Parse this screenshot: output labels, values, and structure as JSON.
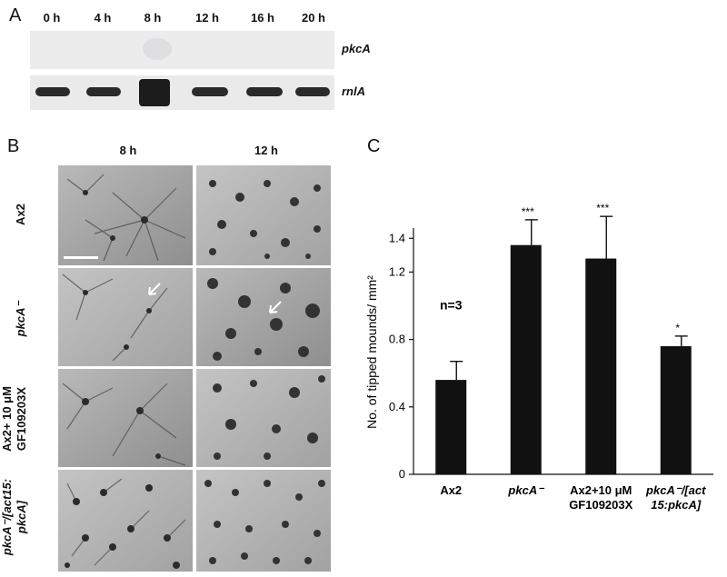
{
  "panels": {
    "a": "A",
    "b": "B",
    "c": "C"
  },
  "panel_a": {
    "timepoints": [
      "0 h",
      "4 h",
      "8 h",
      "12 h",
      "16 h",
      "20 h"
    ],
    "gene_labels": [
      "pkcA",
      "rnlA"
    ]
  },
  "panel_b": {
    "columns": [
      "8 h",
      "12 h"
    ],
    "rows": [
      {
        "lines": [
          "Ax2"
        ]
      },
      {
        "lines": [
          "pkcA⁻"
        ]
      },
      {
        "lines": [
          "Ax2+ 10 μM",
          "GF109203X"
        ]
      },
      {
        "lines": [
          "pkcA⁻/[act15:",
          "pkcA]"
        ]
      }
    ]
  },
  "chart_data": {
    "type": "bar",
    "categories": [
      [
        "Ax2"
      ],
      [
        "pkcA⁻"
      ],
      [
        "Ax2+10 μM",
        "GF109203X"
      ],
      [
        "pkcA⁻/[act",
        "15:pkcA]"
      ]
    ],
    "values": [
      0.56,
      1.36,
      1.28,
      0.76
    ],
    "errors": [
      0.11,
      0.15,
      0.25,
      0.06
    ],
    "significance": [
      "",
      "***",
      "***",
      "*"
    ],
    "ylabel": "No. of tipped mounds/ mm²",
    "yticks": [
      "0",
      "0.4",
      "0.8",
      "1.2",
      "1.4"
    ],
    "ylim": [
      0,
      1.45
    ],
    "annotation": "n=3",
    "bar_color": "#111111"
  }
}
